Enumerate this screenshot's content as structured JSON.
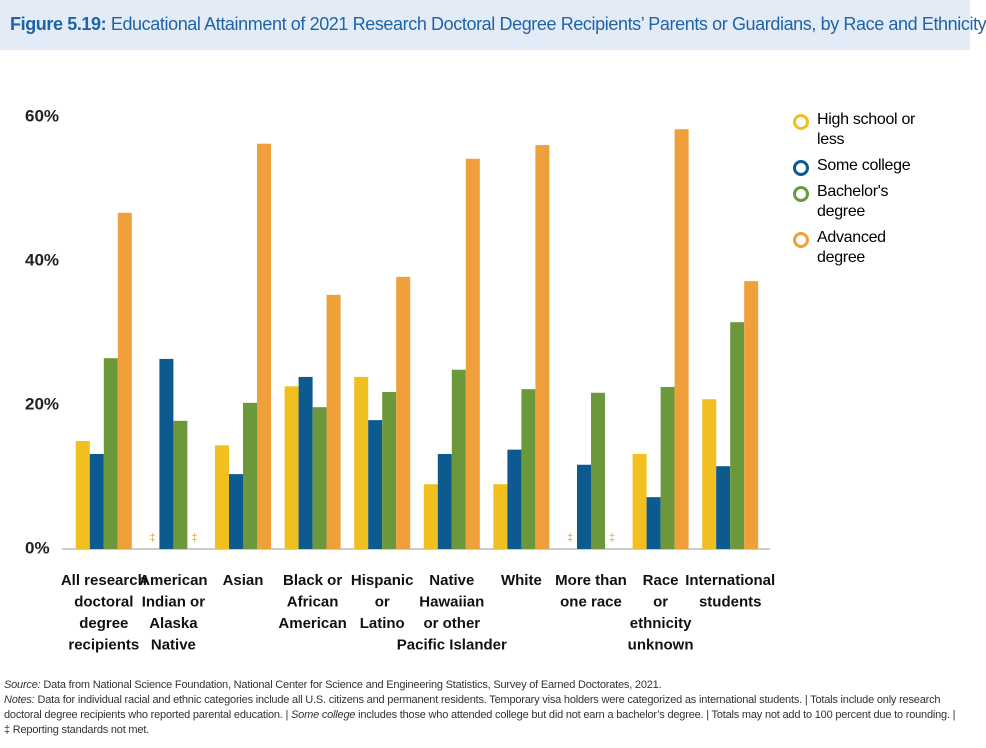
{
  "chart_data": {
    "type": "bar",
    "title_label": "Figure 5.19:",
    "title": "Educational Attainment of 2021 Research Doctoral Degree Recipients’ Parents or Guardians, by Race and Ethnicity",
    "categories": [
      [
        "All research",
        "doctoral",
        "degree",
        "recipients"
      ],
      [
        "American",
        "Indian or",
        "Alaska",
        "Native"
      ],
      [
        "Asian"
      ],
      [
        "Black or",
        "African",
        "American"
      ],
      [
        "Hispanic",
        "or",
        "Latino"
      ],
      [
        "Native",
        "Hawaiian",
        "or other",
        "Pacific Islander"
      ],
      [
        "White"
      ],
      [
        "More than",
        "one race"
      ],
      [
        "Race",
        "or",
        "ethnicity",
        "unknown"
      ],
      [
        "International",
        "students"
      ]
    ],
    "series": [
      {
        "name": "High school or less",
        "color": "#f1bf1f",
        "values": [
          15,
          null,
          14.4,
          22.6,
          23.9,
          9,
          9,
          null,
          13.2,
          20.8
        ],
        "value_labels": [
          null,
          "‡",
          null,
          null,
          null,
          null,
          null,
          "‡",
          null,
          null
        ]
      },
      {
        "name": "Some college",
        "color": "#0d5a8e",
        "values": [
          13.2,
          26.4,
          10.4,
          23.9,
          17.9,
          13.2,
          13.8,
          11.7,
          7.2,
          11.5
        ]
      },
      {
        "name": "Bachelor's degree",
        "color": "#6a983a",
        "values": [
          26.5,
          17.8,
          20.3,
          19.7,
          21.8,
          24.9,
          22.2,
          21.7,
          22.5,
          31.5
        ]
      },
      {
        "name": "Advanced degree",
        "color": "#f0a03a",
        "values": [
          46.7,
          null,
          56.3,
          35.3,
          37.8,
          54.2,
          56.1,
          null,
          58.3,
          37.2
        ],
        "value_labels": [
          null,
          "‡",
          null,
          null,
          null,
          null,
          null,
          "‡",
          null,
          null
        ]
      }
    ],
    "ylim": [
      0,
      60
    ],
    "yticks": [
      {
        "value": 0,
        "label": "0%"
      },
      {
        "value": 20,
        "label": "20%"
      },
      {
        "value": 40,
        "label": "40%"
      },
      {
        "value": 60,
        "label": "60%"
      }
    ],
    "source_label": "Source:",
    "source": "Data from National Science Foundation, National Center for Science and Engineering Statistics, Survey of Earned Doctorates, 2021.",
    "notes_label": "Notes:",
    "notes": [
      "Data for individual racial and ethnic categories include all U.S. citizens and permanent residents. Temporary visa holders were categorized as international students.  |  Totals include only research doctoral degree recipients who reported parental education.  |  ",
      "Some college",
      " includes those who attended college but did not earn a bachelor’s degree.  | Totals may not add to 100 percent due to rounding.  |  ‡ Reporting standards not met."
    ]
  }
}
